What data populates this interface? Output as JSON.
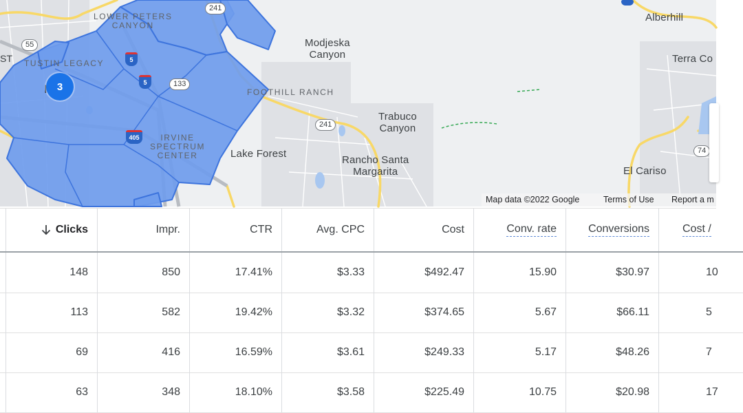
{
  "map": {
    "places": [
      {
        "id": "lower-peters-canyon",
        "text": "LOWER PETERS\nCANYON"
      },
      {
        "id": "modjeska-canyon",
        "text": "Modjeska\nCanyon"
      },
      {
        "id": "alberhill",
        "text": "Alberhill"
      },
      {
        "id": "terra-cotta",
        "text": "Terra Co"
      },
      {
        "id": "tustin-legacy",
        "text": "TUSTIN LEGACY"
      },
      {
        "id": "foothill-ranch",
        "text": "FOOTHILL RANCH"
      },
      {
        "id": "trabuco-canyon",
        "text": "Trabuco\nCanyon"
      },
      {
        "id": "irvine-spectrum",
        "text": "IRVINE\nSPECTRUM\nCENTER"
      },
      {
        "id": "lake-forest",
        "text": "Lake Forest"
      },
      {
        "id": "rancho-santa-margarita",
        "text": "Rancho Santa\nMargarita"
      },
      {
        "id": "el-cariso",
        "text": "El Cariso"
      },
      {
        "id": "irvine-partial",
        "text": "I e"
      },
      {
        "id": "st-partial",
        "text": "ST"
      }
    ],
    "cluster_count": "3",
    "route_shields": {
      "r241a": "241",
      "r55": "55",
      "r133": "133",
      "r241b": "241",
      "r74": "74"
    },
    "interstate_shields": {
      "i5a": "5",
      "i5b": "5",
      "i405": "405"
    },
    "footer": {
      "map_data": "Map data ©2022 Google",
      "terms": "Terms of Use",
      "report": "Report a m"
    },
    "colors": {
      "region_fill": "#6f9ced",
      "region_stroke": "#3d74dd",
      "cluster": "#1a73e8"
    }
  },
  "table": {
    "columns": [
      {
        "label": "Clicks",
        "sorted": "descending",
        "sort_icon": "arrow-down-icon"
      },
      {
        "label": "Impr."
      },
      {
        "label": "CTR"
      },
      {
        "label": "Avg. CPC"
      },
      {
        "label": "Cost"
      },
      {
        "label": "Conv. rate",
        "dashed": true
      },
      {
        "label": "Conversions",
        "dashed": true
      },
      {
        "label": "Cost /",
        "dashed": true
      }
    ],
    "rows": [
      [
        "148",
        "850",
        "17.41%",
        "$3.33",
        "$492.47",
        "15.90",
        "$30.97",
        "10"
      ],
      [
        "113",
        "582",
        "19.42%",
        "$3.32",
        "$374.65",
        "5.67",
        "$66.11",
        "5"
      ],
      [
        "69",
        "416",
        "16.59%",
        "$3.61",
        "$249.33",
        "5.17",
        "$48.26",
        "7"
      ],
      [
        "63",
        "348",
        "18.10%",
        "$3.58",
        "$225.49",
        "10.75",
        "$20.98",
        "17"
      ]
    ]
  }
}
